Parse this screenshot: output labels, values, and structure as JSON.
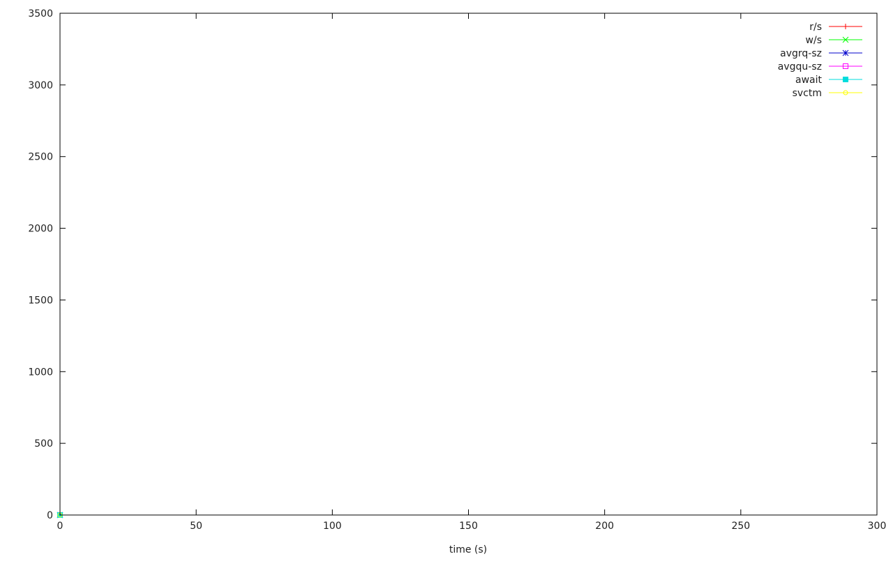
{
  "chart_data": {
    "type": "line",
    "title": "",
    "xlabel": "time (s)",
    "ylabel": "",
    "xlim": [
      0,
      300
    ],
    "ylim": [
      0,
      3500
    ],
    "grid": false,
    "legend_position": "top-right",
    "x_ticks": [
      0,
      50,
      100,
      150,
      200,
      250,
      300
    ],
    "y_ticks": [
      0,
      500,
      1000,
      1500,
      2000,
      2500,
      3000,
      3500
    ],
    "series": [
      {
        "name": "r/s",
        "color": "#ff0000",
        "marker": "plus",
        "x_start": 0,
        "x_step": 1,
        "values": [
          0
        ]
      },
      {
        "name": "w/s",
        "color": "#00ff00",
        "marker": "cross",
        "x_start": 0,
        "x_step": 1,
        "values": [
          0
        ]
      },
      {
        "name": "avgrq-sz",
        "color": "#0000cc",
        "marker": "star",
        "x_start": 0,
        "x_step": 1,
        "values": [
          0
        ]
      },
      {
        "name": "avgqu-sz",
        "color": "#ff00ff",
        "marker": "open-square",
        "x_start": 0,
        "x_step": 1,
        "values": [
          0
        ]
      },
      {
        "name": "await",
        "color": "#00dddd",
        "marker": "filled-square",
        "x_start": 0,
        "x_step": 1,
        "values": [
          0
        ]
      },
      {
        "name": "svctm",
        "color": "#ffff00",
        "marker": "circle",
        "x_start": 0,
        "x_step": 1,
        "values": [
          0
        ]
      }
    ]
  }
}
